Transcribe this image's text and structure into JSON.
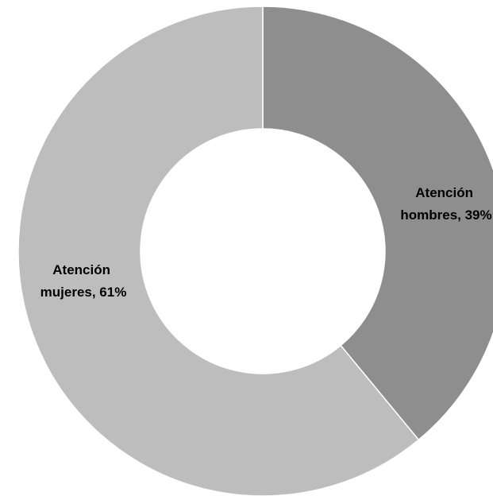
{
  "chart_data": {
    "type": "pie",
    "variant": "doughnut",
    "title": "",
    "categories": [
      "Atención hombres",
      "Atención mujeres"
    ],
    "values": [
      39,
      61
    ],
    "unit": "%",
    "colors": [
      "#8e8e8e",
      "#bdbdbd"
    ],
    "data_labels": [
      {
        "line1": "Atención",
        "line2": "hombres, 39%"
      },
      {
        "line1": "Atención",
        "line2": "mujeres, 61%"
      }
    ],
    "legend": "none",
    "start": "top",
    "direction": "clockwise"
  }
}
